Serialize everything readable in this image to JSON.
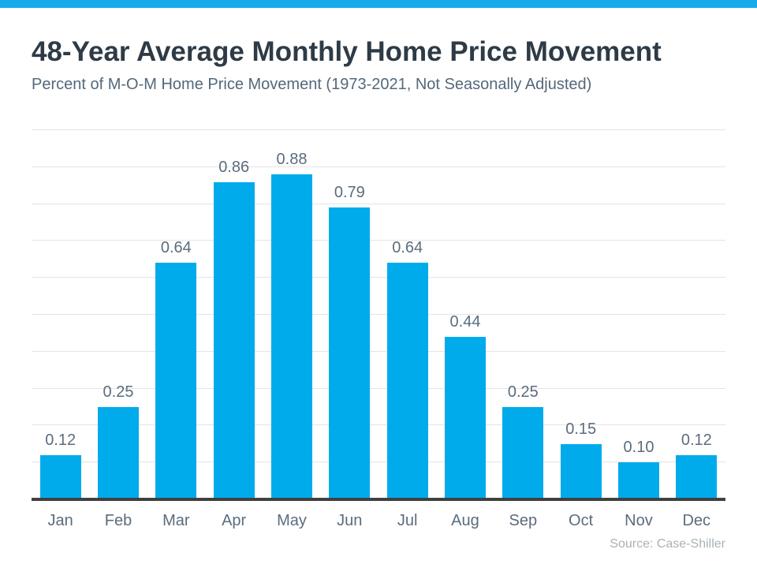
{
  "page": {
    "accent_color": "#16ABEB",
    "background_color": "#ffffff"
  },
  "header": {
    "title": "48-Year Average Monthly Home Price Movement",
    "subtitle": "Percent of M-O-M Home Price Movement (1973-2021, Not Seasonally Adjusted)"
  },
  "chart_data": {
    "type": "bar",
    "title": "48-Year Average Monthly Home Price Movement",
    "subtitle": "Percent of M-O-M Home Price Movement (1973-2021, Not Seasonally Adjusted)",
    "categories": [
      "Jan",
      "Feb",
      "Mar",
      "Apr",
      "May",
      "Jun",
      "Jul",
      "Aug",
      "Sep",
      "Oct",
      "Nov",
      "Dec"
    ],
    "values": [
      0.12,
      0.25,
      0.64,
      0.86,
      0.88,
      0.79,
      0.64,
      0.44,
      0.25,
      0.15,
      0.1,
      0.12
    ],
    "value_labels": [
      "0.12",
      "0.25",
      "0.64",
      "0.86",
      "0.88",
      "0.79",
      "0.64",
      "0.44",
      "0.25",
      "0.15",
      "0.10",
      "0.12"
    ],
    "xlabel": "",
    "ylabel": "",
    "ylim": [
      0,
      1.0
    ],
    "gridline_interval": 0.1,
    "grid": true,
    "y_axis_tick_labels_shown": false,
    "legend": null,
    "bar_color": "#00ABEC",
    "label_color": "#5A6D7E",
    "gridline_color": "#E4E4E4",
    "axis_color": "#404040"
  },
  "footer": {
    "source": "Source: Case-Shiller"
  }
}
